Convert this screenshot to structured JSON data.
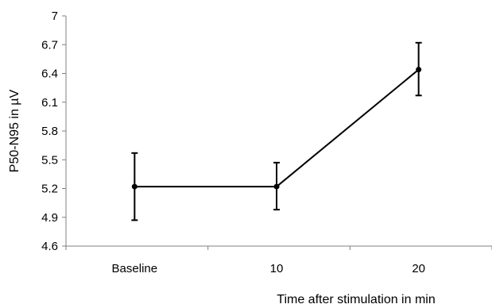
{
  "chart_data": {
    "type": "line",
    "title": "",
    "xlabel": "Time after stimulation in min",
    "ylabel": "P50-N95 in µV",
    "categories": [
      "Baseline",
      "10",
      "20"
    ],
    "yticks": [
      "4.6",
      "4.9",
      "5.2",
      "5.5",
      "5.8",
      "6.1",
      "6.4",
      "6.7",
      "7"
    ],
    "ylim": [
      4.6,
      7.0
    ],
    "grid": false,
    "legend": "none",
    "series": [
      {
        "values": [
          5.22,
          5.22,
          6.44
        ],
        "error_upper": [
          5.57,
          5.47,
          6.72
        ],
        "error_lower": [
          4.87,
          4.98,
          6.17
        ],
        "color": "#000000"
      }
    ]
  }
}
